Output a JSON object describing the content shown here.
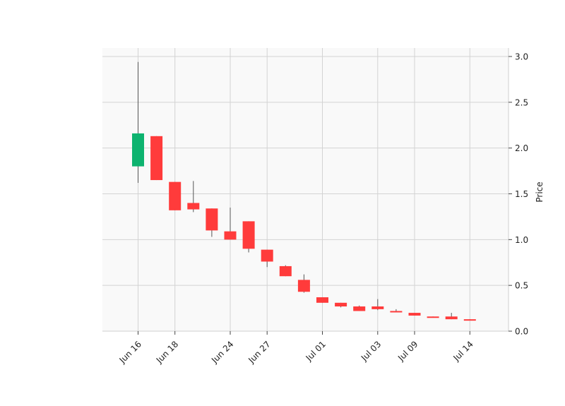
{
  "chart_data": {
    "type": "candlestick",
    "title": "",
    "xlabel": "",
    "ylabel": "Price",
    "ylim": [
      0.0,
      3.05
    ],
    "grid": true,
    "y_axis_position": "right",
    "y_ticks": [
      "0.0",
      "0.5",
      "1.0",
      "1.5",
      "2.0",
      "2.5",
      "3.0"
    ],
    "x_tick_labels": [
      {
        "index": 0,
        "label": "Jun 16"
      },
      {
        "index": 2,
        "label": "Jun 18"
      },
      {
        "index": 5,
        "label": "Jun 24"
      },
      {
        "index": 7,
        "label": "Jun 27"
      },
      {
        "index": 10,
        "label": "Jul 01"
      },
      {
        "index": 13,
        "label": "Jul 03"
      },
      {
        "index": 15,
        "label": "Jul 09"
      },
      {
        "index": 18,
        "label": "Jul 14"
      }
    ],
    "colors": {
      "up": "#0db36f",
      "down": "#ff3b3b",
      "wick": "#555555",
      "grid": "#d3d3d3",
      "background": "#f9f9f9"
    },
    "candles": [
      {
        "open": 1.8,
        "high": 2.94,
        "low": 1.62,
        "close": 2.16
      },
      {
        "open": 2.13,
        "high": 2.13,
        "low": 1.65,
        "close": 1.65
      },
      {
        "open": 1.63,
        "high": 1.63,
        "low": 1.32,
        "close": 1.32
      },
      {
        "open": 1.4,
        "high": 1.64,
        "low": 1.3,
        "close": 1.33
      },
      {
        "open": 1.34,
        "high": 1.34,
        "low": 1.03,
        "close": 1.1
      },
      {
        "open": 1.09,
        "high": 1.35,
        "low": 1.0,
        "close": 1.0
      },
      {
        "open": 1.2,
        "high": 1.2,
        "low": 0.86,
        "close": 0.9
      },
      {
        "open": 0.89,
        "high": 0.89,
        "low": 0.7,
        "close": 0.76
      },
      {
        "open": 0.71,
        "high": 0.72,
        "low": 0.6,
        "close": 0.6
      },
      {
        "open": 0.56,
        "high": 0.62,
        "low": 0.42,
        "close": 0.43
      },
      {
        "open": 0.37,
        "high": 0.37,
        "low": 0.31,
        "close": 0.31
      },
      {
        "open": 0.31,
        "high": 0.31,
        "low": 0.26,
        "close": 0.27
      },
      {
        "open": 0.27,
        "high": 0.28,
        "low": 0.22,
        "close": 0.22
      },
      {
        "open": 0.27,
        "high": 0.35,
        "low": 0.23,
        "close": 0.24
      },
      {
        "open": 0.22,
        "high": 0.24,
        "low": 0.21,
        "close": 0.21
      },
      {
        "open": 0.2,
        "high": 0.2,
        "low": 0.17,
        "close": 0.17
      },
      {
        "open": 0.16,
        "high": 0.16,
        "low": 0.15,
        "close": 0.15
      },
      {
        "open": 0.16,
        "high": 0.2,
        "low": 0.13,
        "close": 0.13
      },
      {
        "open": 0.13,
        "high": 0.13,
        "low": 0.12,
        "close": 0.12
      }
    ]
  }
}
